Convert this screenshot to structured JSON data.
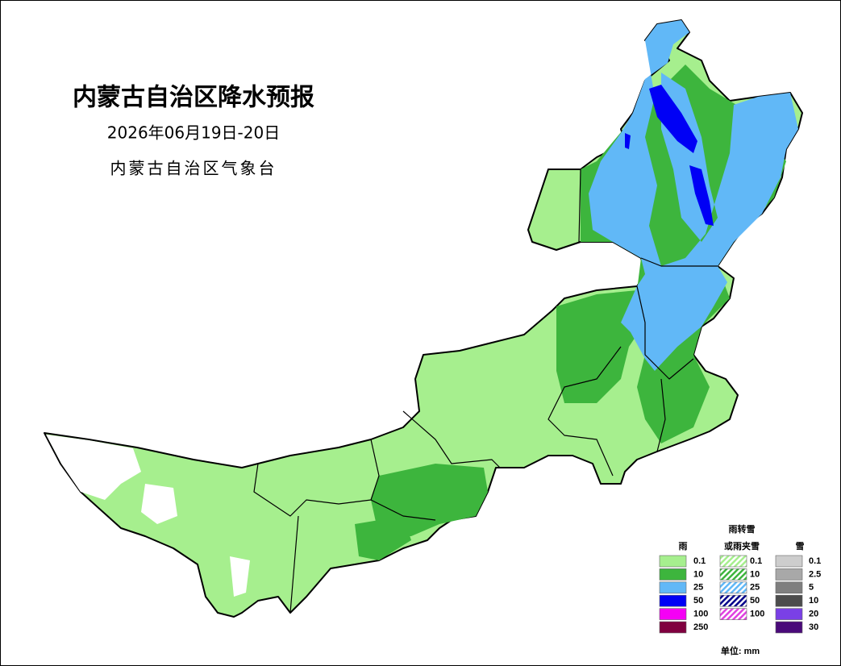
{
  "header": {
    "title": "内蒙古自治区降水预报",
    "date": "2026年06月19日-20日",
    "issuer": "内蒙古自治区气象台"
  },
  "legend": {
    "rain": {
      "title": "雨",
      "items": [
        {
          "label": "0.1",
          "color": "#a6ef8e"
        },
        {
          "label": "10",
          "color": "#3db53d"
        },
        {
          "label": "25",
          "color": "#61b8f7"
        },
        {
          "label": "50",
          "color": "#0000f5"
        },
        {
          "label": "100",
          "color": "#f500f5"
        },
        {
          "label": "250",
          "color": "#80003f"
        }
      ]
    },
    "mixed": {
      "title_lines": [
        "雨转雪",
        "或雨夹雪"
      ],
      "items": [
        {
          "label": "0.1",
          "color": "#a6ef8e"
        },
        {
          "label": "10",
          "color": "#3db53d"
        },
        {
          "label": "25",
          "color": "#61b8f7"
        },
        {
          "label": "50",
          "color": "#00008a"
        },
        {
          "label": "100",
          "color": "#e040e0"
        }
      ]
    },
    "snow": {
      "title": "雪",
      "items": [
        {
          "label": "0.1",
          "color": "#cdcdcd"
        },
        {
          "label": "2.5",
          "color": "#a8a8a8"
        },
        {
          "label": "5",
          "color": "#7f7f7f"
        },
        {
          "label": "10",
          "color": "#4c4c4c"
        },
        {
          "label": "20",
          "color": "#7a40e6"
        },
        {
          "label": "30",
          "color": "#4a0a7a"
        }
      ]
    },
    "unit": "单位: mm"
  }
}
